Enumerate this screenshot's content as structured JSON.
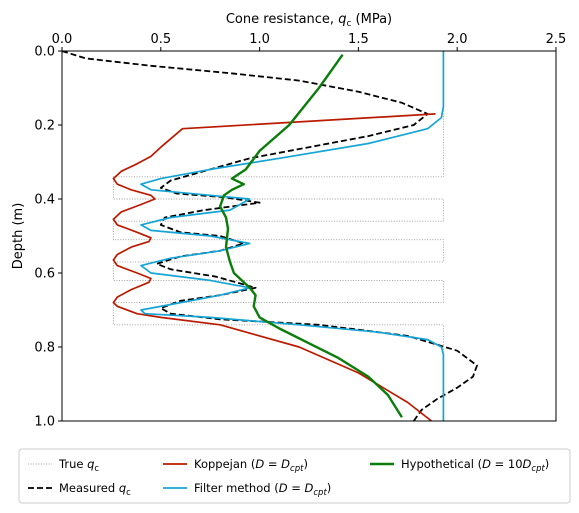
{
  "chart_data": {
    "type": "line",
    "xlabel": "Cone resistance, q_c (MPa)",
    "xlabel_parts": {
      "main": "Cone resistance, ",
      "var": "q",
      "sub": "c",
      "unit": " (MPa)"
    },
    "ylabel": "Depth (m)",
    "xlim": [
      0,
      2.5
    ],
    "ylim": [
      1.0,
      0.0
    ],
    "x_axis_position": "top",
    "y_axis_inverted": true,
    "grid": false,
    "legend_position": "bottom-outside",
    "xticks": [
      "0.0",
      "0.5",
      "1.0",
      "1.5",
      "2.0",
      "2.5"
    ],
    "yticks": [
      "0.0",
      "0.2",
      "0.4",
      "0.6",
      "0.8",
      "1.0"
    ],
    "series": [
      {
        "key": "true",
        "name": "True q_c",
        "label_parts": {
          "pre": "True ",
          "var": "q",
          "sub": "c",
          "post": ""
        },
        "color": "#999999",
        "style": "dotted",
        "points": [
          [
            1.93,
            0.0
          ],
          [
            1.93,
            0.34
          ],
          [
            0.26,
            0.34
          ],
          [
            0.26,
            0.4
          ],
          [
            1.93,
            0.4
          ],
          [
            1.93,
            0.46
          ],
          [
            0.26,
            0.46
          ],
          [
            0.26,
            0.51
          ],
          [
            1.93,
            0.51
          ],
          [
            1.93,
            0.57
          ],
          [
            0.26,
            0.57
          ],
          [
            0.26,
            0.62
          ],
          [
            1.93,
            0.62
          ],
          [
            1.93,
            0.68
          ],
          [
            0.26,
            0.68
          ],
          [
            0.26,
            0.74
          ],
          [
            1.93,
            0.74
          ],
          [
            1.93,
            1.0
          ]
        ]
      },
      {
        "key": "measured",
        "name": "Measured q_c",
        "label_parts": {
          "pre": "Measured ",
          "var": "q",
          "sub": "c",
          "post": ""
        },
        "color": "#000000",
        "style": "dashed",
        "points": [
          [
            0.0,
            0.0
          ],
          [
            0.12,
            0.02
          ],
          [
            0.45,
            0.04
          ],
          [
            0.85,
            0.06
          ],
          [
            1.2,
            0.08
          ],
          [
            1.5,
            0.11
          ],
          [
            1.72,
            0.14
          ],
          [
            1.85,
            0.17
          ],
          [
            1.78,
            0.2
          ],
          [
            1.55,
            0.23
          ],
          [
            1.25,
            0.26
          ],
          [
            0.95,
            0.29
          ],
          [
            0.75,
            0.32
          ],
          [
            0.55,
            0.35
          ],
          [
            0.5,
            0.37
          ],
          [
            0.58,
            0.385
          ],
          [
            0.82,
            0.395
          ],
          [
            1.0,
            0.41
          ],
          [
            0.72,
            0.43
          ],
          [
            0.52,
            0.45
          ],
          [
            0.5,
            0.47
          ],
          [
            0.6,
            0.49
          ],
          [
            0.8,
            0.5
          ],
          [
            0.92,
            0.52
          ],
          [
            0.8,
            0.54
          ],
          [
            0.6,
            0.555
          ],
          [
            0.48,
            0.575
          ],
          [
            0.55,
            0.59
          ],
          [
            0.78,
            0.61
          ],
          [
            0.98,
            0.64
          ],
          [
            0.8,
            0.66
          ],
          [
            0.6,
            0.675
          ],
          [
            0.5,
            0.695
          ],
          [
            0.55,
            0.71
          ],
          [
            0.8,
            0.725
          ],
          [
            1.3,
            0.74
          ],
          [
            1.75,
            0.77
          ],
          [
            2.0,
            0.81
          ],
          [
            2.1,
            0.85
          ],
          [
            2.08,
            0.88
          ],
          [
            2.0,
            0.91
          ],
          [
            1.9,
            0.94
          ],
          [
            1.82,
            0.97
          ],
          [
            1.78,
            1.0
          ]
        ]
      },
      {
        "key": "koppejan",
        "name": "Koppejan (D = D_cpt)",
        "label_parts": {
          "pre": "Koppejan (",
          "var": "D",
          "sub": "",
          "post": " = D",
          "sub2": "cpt",
          "end": ")"
        },
        "color": "#bb1a00",
        "style": "solid",
        "points": [
          [
            1.89,
            0.17
          ],
          [
            0.61,
            0.21
          ],
          [
            0.5,
            0.26
          ],
          [
            0.45,
            0.285
          ],
          [
            0.38,
            0.305
          ],
          [
            0.3,
            0.325
          ],
          [
            0.26,
            0.345
          ],
          [
            0.28,
            0.36
          ],
          [
            0.35,
            0.375
          ],
          [
            0.45,
            0.39
          ],
          [
            0.47,
            0.4
          ],
          [
            0.4,
            0.415
          ],
          [
            0.3,
            0.435
          ],
          [
            0.26,
            0.455
          ],
          [
            0.28,
            0.47
          ],
          [
            0.38,
            0.49
          ],
          [
            0.45,
            0.505
          ],
          [
            0.44,
            0.515
          ],
          [
            0.35,
            0.53
          ],
          [
            0.28,
            0.55
          ],
          [
            0.26,
            0.565
          ],
          [
            0.28,
            0.58
          ],
          [
            0.38,
            0.6
          ],
          [
            0.45,
            0.615
          ],
          [
            0.44,
            0.625
          ],
          [
            0.35,
            0.645
          ],
          [
            0.28,
            0.665
          ],
          [
            0.26,
            0.68
          ],
          [
            0.28,
            0.69
          ],
          [
            0.38,
            0.71
          ],
          [
            0.5,
            0.72
          ],
          [
            0.8,
            0.74
          ],
          [
            1.2,
            0.8
          ],
          [
            1.5,
            0.87
          ],
          [
            1.75,
            0.95
          ],
          [
            1.87,
            1.0
          ]
        ]
      },
      {
        "key": "filter",
        "name": "Filter method (D = D_cpt)",
        "label_parts": {
          "pre": "Filter method (",
          "var": "D",
          "sub": "",
          "post": " = D",
          "sub2": "cpt",
          "end": ")"
        },
        "color": "#14a5d6",
        "style": "solid",
        "points": [
          [
            1.93,
            0.0
          ],
          [
            1.93,
            0.15
          ],
          [
            1.92,
            0.18
          ],
          [
            1.85,
            0.21
          ],
          [
            1.55,
            0.25
          ],
          [
            1.1,
            0.29
          ],
          [
            0.75,
            0.32
          ],
          [
            0.5,
            0.345
          ],
          [
            0.4,
            0.36
          ],
          [
            0.45,
            0.375
          ],
          [
            0.75,
            0.39
          ],
          [
            0.95,
            0.4
          ],
          [
            0.85,
            0.43
          ],
          [
            0.55,
            0.45
          ],
          [
            0.4,
            0.47
          ],
          [
            0.45,
            0.485
          ],
          [
            0.75,
            0.5
          ],
          [
            0.95,
            0.52
          ],
          [
            0.8,
            0.54
          ],
          [
            0.55,
            0.56
          ],
          [
            0.4,
            0.58
          ],
          [
            0.45,
            0.6
          ],
          [
            0.75,
            0.62
          ],
          [
            0.95,
            0.64
          ],
          [
            0.8,
            0.66
          ],
          [
            0.55,
            0.685
          ],
          [
            0.4,
            0.7
          ],
          [
            0.42,
            0.71
          ],
          [
            0.75,
            0.72
          ],
          [
            1.2,
            0.74
          ],
          [
            1.6,
            0.76
          ],
          [
            1.85,
            0.78
          ],
          [
            1.92,
            0.8
          ],
          [
            1.93,
            0.82
          ],
          [
            1.93,
            1.0
          ]
        ]
      },
      {
        "key": "hypothetical",
        "name": "Hypothetical (D = 10D_cpt)",
        "label_parts": {
          "pre": "Hypothetical (",
          "var": "D",
          "sub": "",
          "post": " = 10D",
          "sub2": "cpt",
          "end": ")"
        },
        "color": "#0a7d0a",
        "style": "solid",
        "points": [
          [
            1.42,
            0.01
          ],
          [
            1.3,
            0.1
          ],
          [
            1.15,
            0.2
          ],
          [
            1.0,
            0.27
          ],
          [
            0.93,
            0.32
          ],
          [
            0.86,
            0.345
          ],
          [
            0.92,
            0.36
          ],
          [
            0.86,
            0.375
          ],
          [
            0.82,
            0.39
          ],
          [
            0.8,
            0.42
          ],
          [
            0.83,
            0.45
          ],
          [
            0.84,
            0.48
          ],
          [
            0.83,
            0.53
          ],
          [
            0.85,
            0.57
          ],
          [
            0.87,
            0.6
          ],
          [
            0.95,
            0.64
          ],
          [
            0.98,
            0.66
          ],
          [
            0.97,
            0.69
          ],
          [
            1.0,
            0.72
          ],
          [
            1.1,
            0.75
          ],
          [
            1.25,
            0.79
          ],
          [
            1.4,
            0.83
          ],
          [
            1.55,
            0.88
          ],
          [
            1.65,
            0.93
          ],
          [
            1.72,
            0.99
          ]
        ]
      }
    ]
  }
}
